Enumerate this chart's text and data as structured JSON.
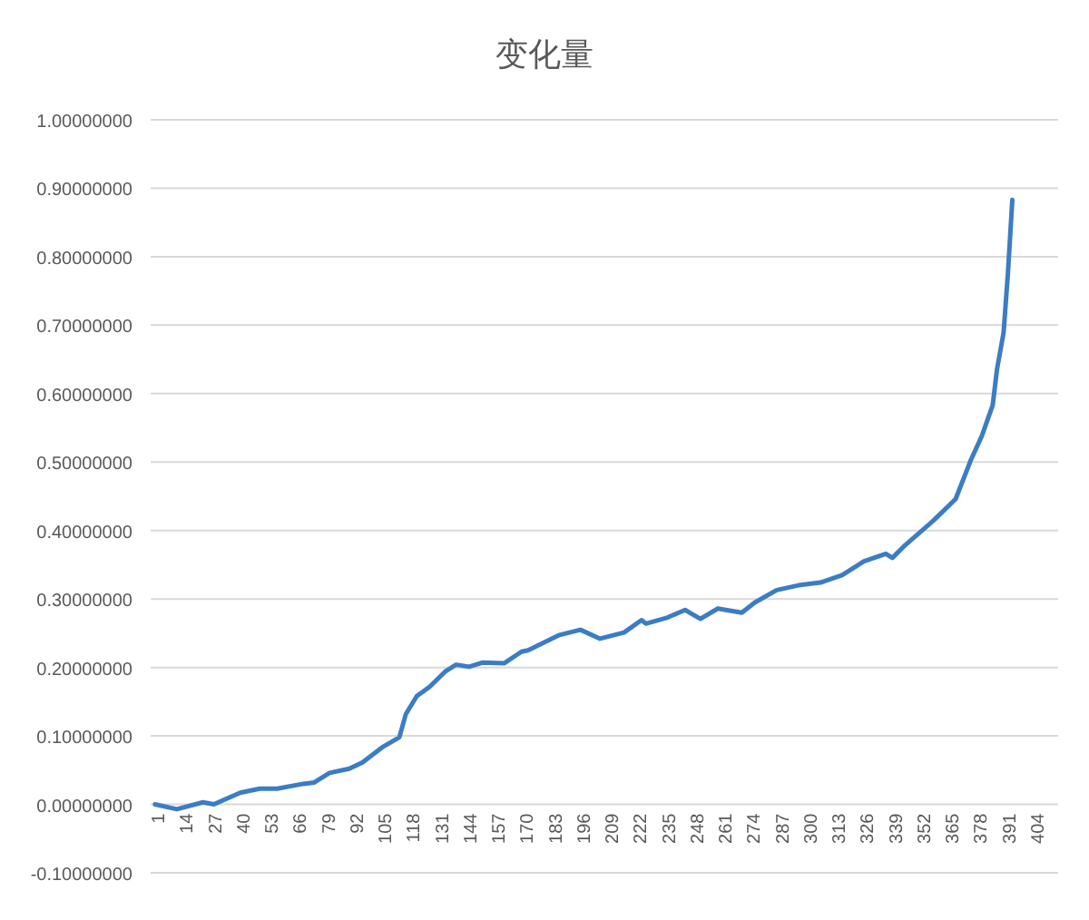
{
  "chart_data": {
    "type": "line",
    "title": "变化量",
    "x": [
      0,
      10,
      22,
      27,
      39,
      48,
      56,
      68,
      73,
      80,
      89,
      95,
      104,
      112,
      115,
      120,
      126,
      133,
      138,
      144,
      150,
      160,
      168,
      171,
      185,
      195,
      204,
      215,
      223,
      225,
      235,
      243,
      250,
      258,
      269,
      275,
      285,
      295,
      305,
      315,
      325,
      335,
      338,
      344,
      357,
      367,
      374,
      379,
      384,
      386,
      389,
      391,
      393
    ],
    "series": [
      {
        "color": "#3b7dc4",
        "values": [
          0.0,
          -0.007,
          0.003,
          0.0,
          0.017,
          0.023,
          0.023,
          0.03,
          0.032,
          0.046,
          0.052,
          0.061,
          0.083,
          0.098,
          0.132,
          0.158,
          0.172,
          0.194,
          0.204,
          0.201,
          0.207,
          0.206,
          0.223,
          0.225,
          0.247,
          0.255,
          0.242,
          0.251,
          0.269,
          0.264,
          0.273,
          0.284,
          0.271,
          0.286,
          0.28,
          0.295,
          0.313,
          0.32,
          0.324,
          0.335,
          0.355,
          0.366,
          0.36,
          0.379,
          0.415,
          0.446,
          0.503,
          0.538,
          0.583,
          0.636,
          0.689,
          0.777,
          0.883
        ]
      }
    ],
    "xlim": [
      -2,
      414
    ],
    "xticks": [
      1,
      14,
      27,
      40,
      53,
      66,
      79,
      92,
      105,
      118,
      131,
      144,
      157,
      170,
      183,
      196,
      209,
      222,
      235,
      248,
      261,
      274,
      287,
      300,
      313,
      326,
      339,
      352,
      365,
      378,
      391,
      404
    ],
    "ylim": [
      -0.1,
      1.0
    ],
    "yticks": [
      {
        "value": -0.1,
        "label": "-0.10000000"
      },
      {
        "value": 0.0,
        "label": "0.00000000"
      },
      {
        "value": 0.1,
        "label": "0.10000000"
      },
      {
        "value": 0.2,
        "label": "0.20000000"
      },
      {
        "value": 0.3,
        "label": "0.30000000"
      },
      {
        "value": 0.4,
        "label": "0.40000000"
      },
      {
        "value": 0.5,
        "label": "0.50000000"
      },
      {
        "value": 0.6,
        "label": "0.60000000"
      },
      {
        "value": 0.7,
        "label": "0.70000000"
      },
      {
        "value": 0.8,
        "label": "0.80000000"
      },
      {
        "value": 0.9,
        "label": "0.90000000"
      },
      {
        "value": 1.0,
        "label": "1.00000000"
      }
    ],
    "grid": "y"
  }
}
